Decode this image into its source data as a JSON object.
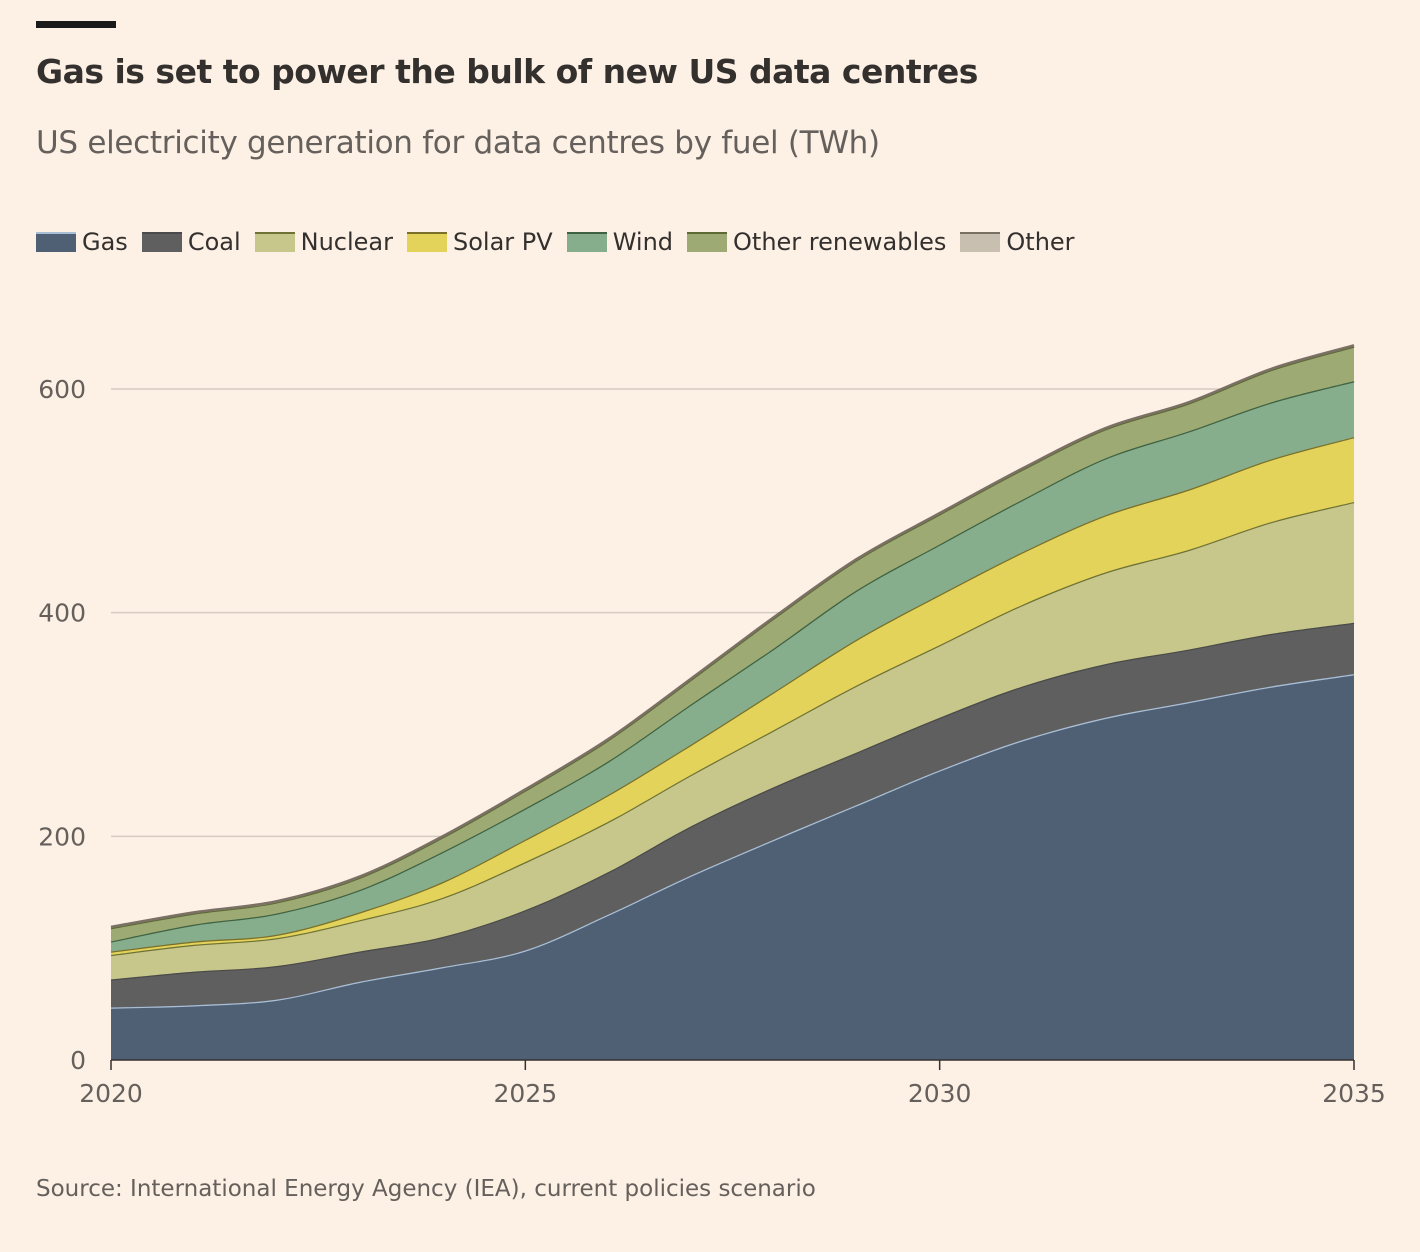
{
  "chart_data": {
    "type": "area",
    "stacked": true,
    "title": "Gas is set to power the bulk of new US data centres",
    "subtitle": "US electricity generation for data centres by fuel (TWh)",
    "source": "Source: International Energy Agency (IEA), current policies scenario",
    "x": [
      2020,
      2021,
      2022,
      2023,
      2024,
      2025,
      2026,
      2027,
      2028,
      2029,
      2030,
      2031,
      2032,
      2033,
      2034,
      2035
    ],
    "x_ticks": [
      "2020",
      "2025",
      "2030",
      "2035"
    ],
    "y_ticks": [
      "0",
      "200",
      "400",
      "600"
    ],
    "ylim": [
      0,
      640
    ],
    "xlim": [
      2020,
      2035
    ],
    "grid": "horizontal",
    "legend_position": "top-left",
    "series": [
      {
        "name": "Gas",
        "color": "#4f6075",
        "line": "#a9bfd6",
        "values": [
          47,
          49,
          54,
          70,
          83,
          98,
          130,
          165,
          197,
          228,
          259,
          286,
          306,
          320,
          334,
          345
        ]
      },
      {
        "name": "Coal",
        "color": "#5f5f5f",
        "line": "#4a4a4a",
        "values": [
          25,
          30,
          30,
          27,
          27,
          36,
          38,
          44,
          47,
          47,
          47,
          48,
          48,
          47,
          47,
          46
        ]
      },
      {
        "name": "Nuclear",
        "color": "#c8c78b",
        "line": "#6f7236",
        "values": [
          22,
          24,
          25,
          28,
          35,
          43,
          45,
          46,
          51,
          60,
          65,
          73,
          82,
          89,
          100,
          108
        ]
      },
      {
        "name": "Solar PV",
        "color": "#e3d35a",
        "line": "#7a7028",
        "values": [
          3,
          3,
          3,
          7,
          14,
          20,
          24,
          27,
          34,
          41,
          45,
          47,
          51,
          54,
          56,
          58
        ]
      },
      {
        "name": "Wind",
        "color": "#86ad8c",
        "line": "#3e6242",
        "values": [
          9,
          15,
          19,
          20,
          27,
          28,
          30,
          36,
          39,
          44,
          45,
          47,
          51,
          52,
          51,
          50
        ]
      },
      {
        "name": "Other renewables",
        "color": "#9eaa73",
        "line": "#5e6a36",
        "values": [
          12,
          10,
          10,
          11,
          13,
          16,
          19,
          22,
          27,
          27,
          27,
          27,
          26,
          25,
          29,
          31
        ]
      },
      {
        "name": "Other",
        "color": "#c9bfb1",
        "line": "#7a7064",
        "values": [
          1,
          1,
          1,
          1,
          1,
          1,
          1,
          1,
          1,
          1,
          1,
          1,
          1,
          1,
          1,
          1
        ]
      }
    ]
  }
}
